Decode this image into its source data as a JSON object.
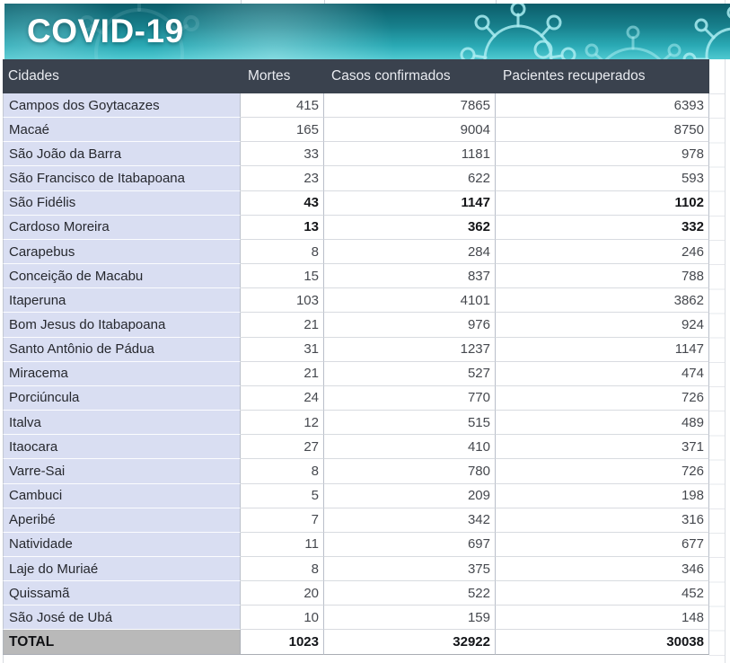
{
  "banner": {
    "title": "COVID-19"
  },
  "table": {
    "columns": [
      {
        "label": "Cidades"
      },
      {
        "label": "Mortes"
      },
      {
        "label": "Casos confirmados"
      },
      {
        "label": "Pacientes recuperados"
      }
    ],
    "rows": [
      {
        "city": "Campos dos Goytacazes",
        "deaths": 415,
        "confirmed": 7865,
        "recovered": 6393,
        "bold_values": false
      },
      {
        "city": "Macaé",
        "deaths": 165,
        "confirmed": 9004,
        "recovered": 8750,
        "bold_values": false
      },
      {
        "city": "São João da Barra",
        "deaths": 33,
        "confirmed": 1181,
        "recovered": 978,
        "bold_values": false
      },
      {
        "city": "São Francisco de Itabapoana",
        "deaths": 23,
        "confirmed": 622,
        "recovered": 593,
        "bold_values": false
      },
      {
        "city": "São Fidélis",
        "deaths": 43,
        "confirmed": 1147,
        "recovered": 1102,
        "bold_values": true
      },
      {
        "city": "Cardoso Moreira",
        "deaths": 13,
        "confirmed": 362,
        "recovered": 332,
        "bold_values": true
      },
      {
        "city": "Carapebus",
        "deaths": 8,
        "confirmed": 284,
        "recovered": 246,
        "bold_values": false
      },
      {
        "city": "Conceição de Macabu",
        "deaths": 15,
        "confirmed": 837,
        "recovered": 788,
        "bold_values": false
      },
      {
        "city": "Itaperuna",
        "deaths": 103,
        "confirmed": 4101,
        "recovered": 3862,
        "bold_values": false
      },
      {
        "city": "Bom Jesus do Itabapoana",
        "deaths": 21,
        "confirmed": 976,
        "recovered": 924,
        "bold_values": false
      },
      {
        "city": "Santo Antônio de Pádua",
        "deaths": 31,
        "confirmed": 1237,
        "recovered": 1147,
        "bold_values": false
      },
      {
        "city": "Miracema",
        "deaths": 21,
        "confirmed": 527,
        "recovered": 474,
        "bold_values": false
      },
      {
        "city": "Porciúncula",
        "deaths": 24,
        "confirmed": 770,
        "recovered": 726,
        "bold_values": false
      },
      {
        "city": "Italva",
        "deaths": 12,
        "confirmed": 515,
        "recovered": 489,
        "bold_values": false
      },
      {
        "city": "Itaocara",
        "deaths": 27,
        "confirmed": 410,
        "recovered": 371,
        "bold_values": false
      },
      {
        "city": "Varre-Sai",
        "deaths": 8,
        "confirmed": 780,
        "recovered": 726,
        "bold_values": false
      },
      {
        "city": "Cambuci",
        "deaths": 5,
        "confirmed": 209,
        "recovered": 198,
        "bold_values": false
      },
      {
        "city": "Aperibé",
        "deaths": 7,
        "confirmed": 342,
        "recovered": 316,
        "bold_values": false
      },
      {
        "city": "Natividade",
        "deaths": 11,
        "confirmed": 697,
        "recovered": 677,
        "bold_values": false
      },
      {
        "city": "Laje do Muriaé",
        "deaths": 8,
        "confirmed": 375,
        "recovered": 346,
        "bold_values": false
      },
      {
        "city": "Quissamã",
        "deaths": 20,
        "confirmed": 522,
        "recovered": 452,
        "bold_values": false
      },
      {
        "city": "São José de Ubá",
        "deaths": 10,
        "confirmed": 159,
        "recovered": 148,
        "bold_values": false
      }
    ],
    "total": {
      "label": "TOTAL",
      "deaths": 1023,
      "confirmed": 32922,
      "recovered": 30038
    }
  },
  "colors": {
    "banner_teal_dark": "#0b5c69",
    "banner_teal_light": "#4fc9d1",
    "virus_outline": "#a9ecf1",
    "header_bg": "#3a424e",
    "header_text": "#e9ebf0",
    "city_cell_bg": "#d9def2",
    "total_label_bg": "#b9b9b9",
    "number_text": "#45484e"
  }
}
